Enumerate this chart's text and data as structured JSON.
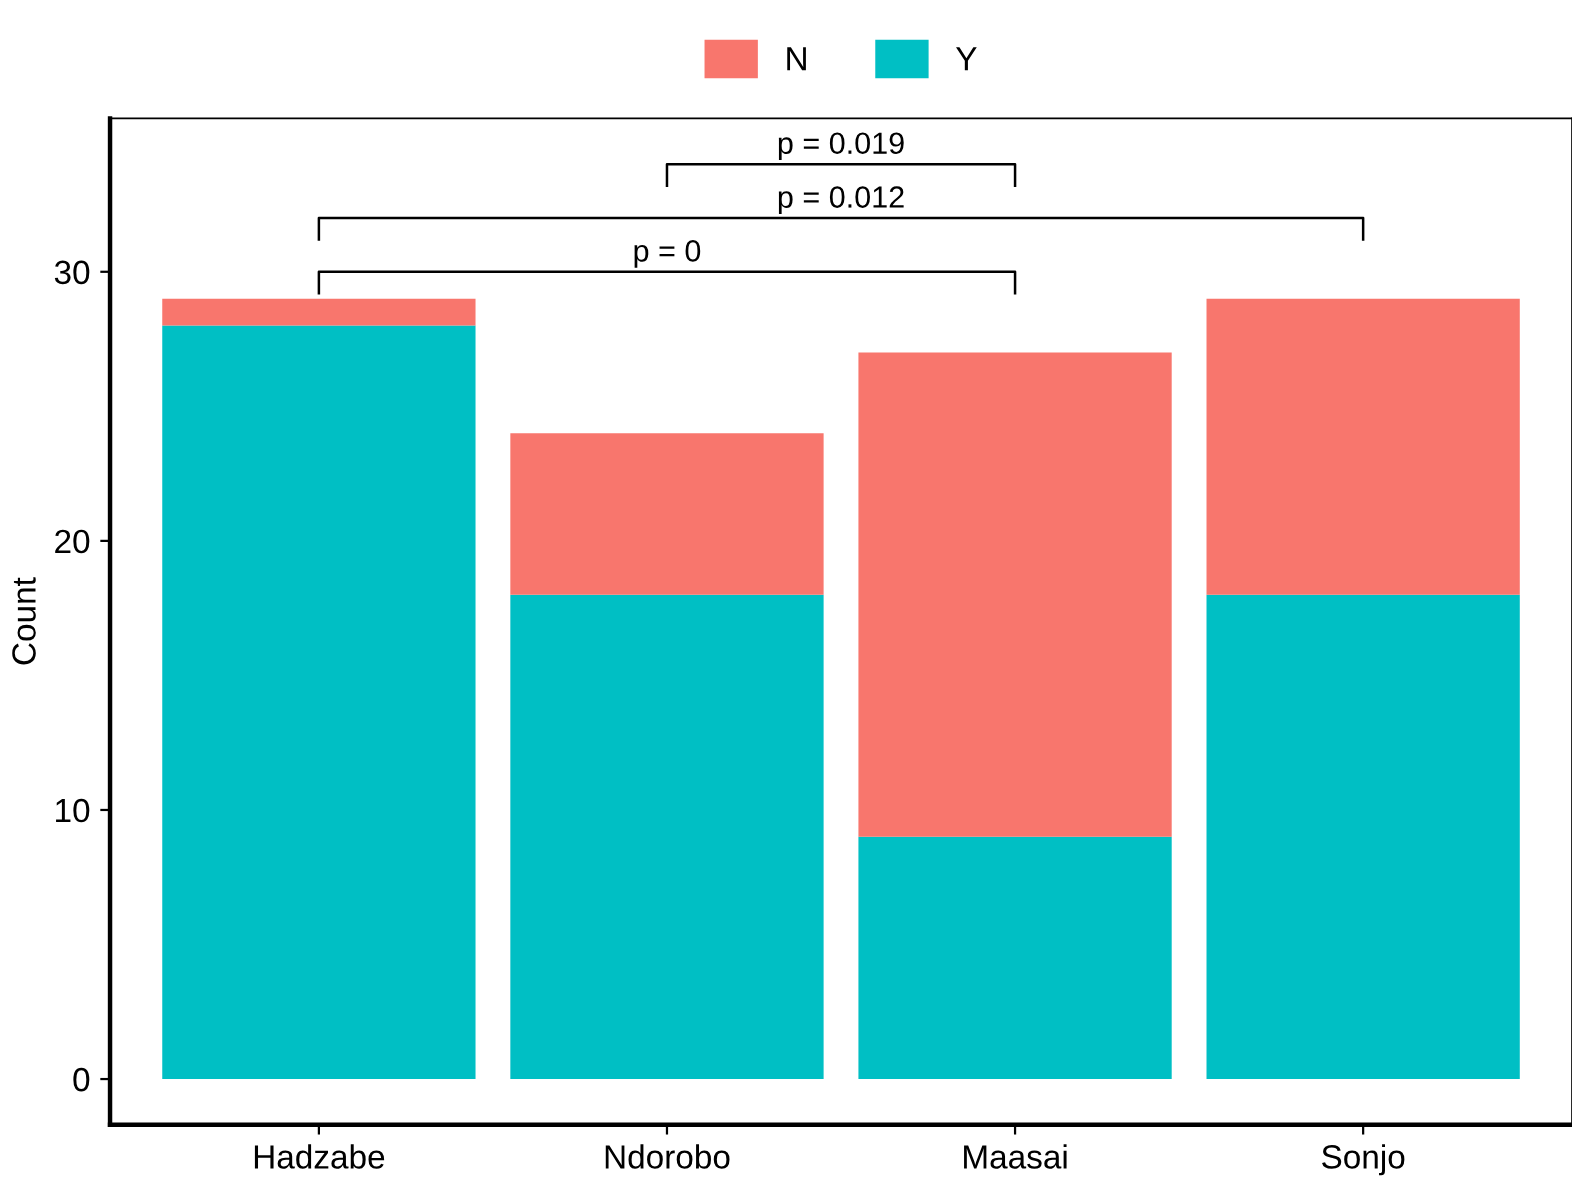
{
  "chart_data": {
    "type": "bar",
    "stacked": true,
    "ylabel": "Count",
    "categories": [
      "Hadzabe",
      "Ndorobo",
      "Maasai",
      "Sonjo"
    ],
    "series": [
      {
        "name": "Y",
        "color": "#00bfc4",
        "values": [
          28,
          18,
          9,
          18
        ]
      },
      {
        "name": "N",
        "color": "#f8766d",
        "values": [
          1,
          6,
          18,
          11
        ]
      }
    ],
    "ylim": [
      -1.7,
      35.7
    ],
    "yticks": [
      0,
      10,
      20,
      30
    ],
    "grid": false,
    "legend": "top",
    "annotations": [
      "p = 0",
      "p = 0.012",
      "p = 0.019"
    ]
  }
}
